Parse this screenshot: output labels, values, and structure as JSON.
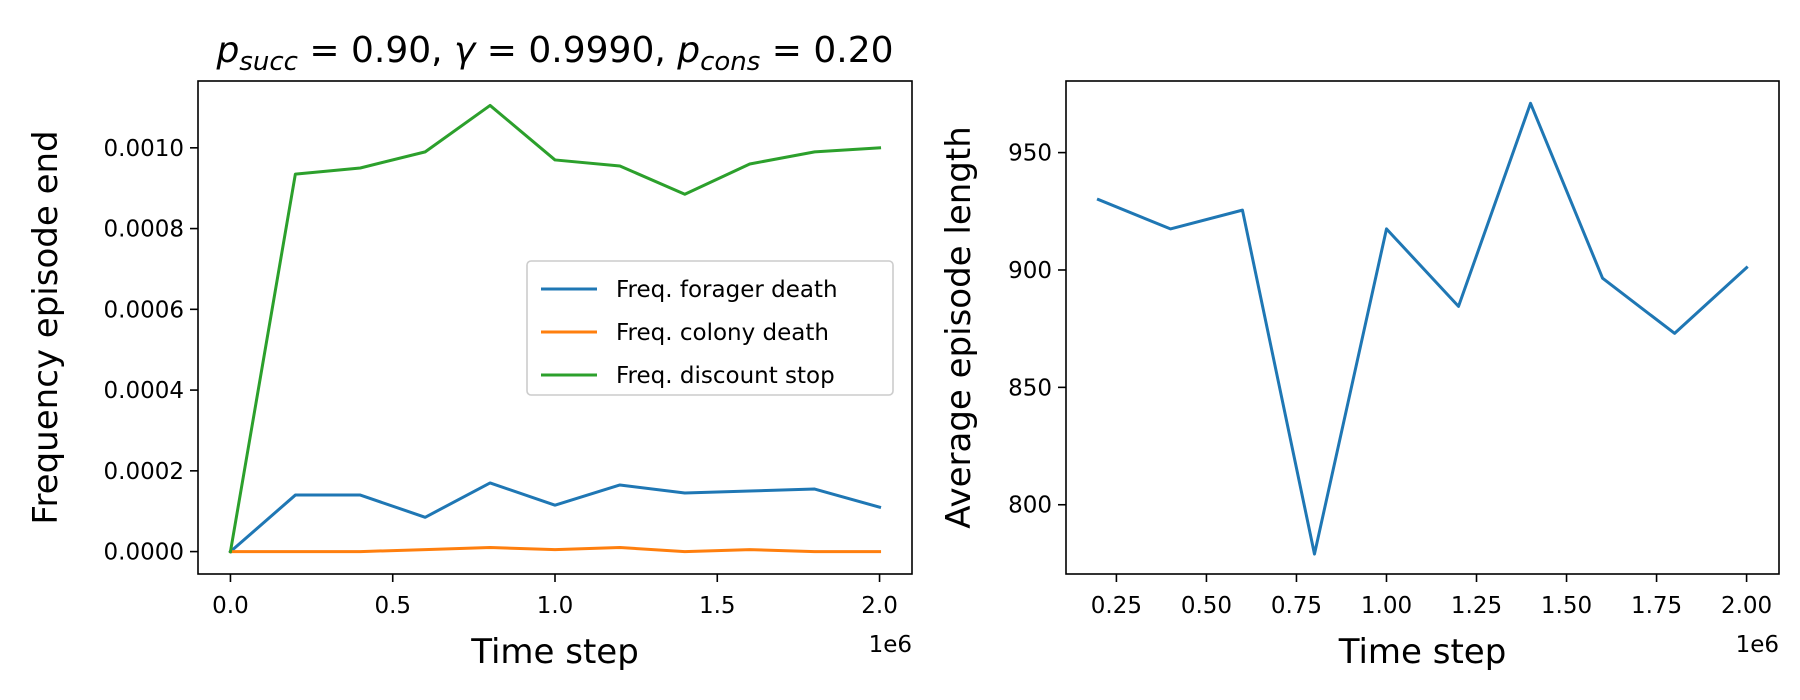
{
  "chart_data": [
    {
      "type": "line",
      "title": {
        "parts": [
          {
            "text": "p",
            "style": "italic"
          },
          {
            "text": "succ",
            "style": "italic-sub"
          },
          {
            "text": " = 0.90, ",
            "style": "normal"
          },
          {
            "text": "γ",
            "style": "italic"
          },
          {
            "text": " = 0.9990, ",
            "style": "normal"
          },
          {
            "text": "p",
            "style": "italic"
          },
          {
            "text": "cons",
            "style": "italic-sub"
          },
          {
            "text": " = 0.20",
            "style": "normal"
          }
        ]
      },
      "xlabel": "Time step",
      "ylabel": "Frequency episode end",
      "x_offset_label": "1e6",
      "xlim": [
        -0.1,
        2.1
      ],
      "ylim": [
        -5.55e-05,
        0.0011655
      ],
      "xticks": [
        0.0,
        0.5,
        1.0,
        1.5,
        2.0
      ],
      "xtick_labels": [
        "0.0",
        "0.5",
        "1.0",
        "1.5",
        "2.0"
      ],
      "yticks": [
        0.0,
        0.0002,
        0.0004,
        0.0006,
        0.0008,
        0.001
      ],
      "ytick_labels": [
        "0.0000",
        "0.0002",
        "0.0004",
        "0.0006",
        "0.0008",
        "0.0010"
      ],
      "grid": false,
      "legend_position": "center-right",
      "x": [
        0.0,
        0.2,
        0.4,
        0.6,
        0.8,
        1.0,
        1.2,
        1.4,
        1.6,
        1.8,
        2.0
      ],
      "series": [
        {
          "name": "Freq. forager death",
          "color": "#1f77b4",
          "values": [
            0.0,
            0.00014,
            0.00014,
            8.5e-05,
            0.00017,
            0.000115,
            0.000165,
            0.000145,
            0.00015,
            0.000155,
            0.00011
          ]
        },
        {
          "name": "Freq. colony death",
          "color": "#ff7f0e",
          "values": [
            0.0,
            0.0,
            0.0,
            5e-06,
            1e-05,
            5e-06,
            1e-05,
            0.0,
            5e-06,
            0.0,
            0.0
          ]
        },
        {
          "name": "Freq. discount stop",
          "color": "#2ca02c",
          "values": [
            0.0,
            0.000935,
            0.00095,
            0.00099,
            0.001105,
            0.00097,
            0.000955,
            0.000885,
            0.00096,
            0.00099,
            0.001
          ]
        }
      ]
    },
    {
      "type": "line",
      "xlabel": "Time step",
      "ylabel": "Average episode length",
      "x_offset_label": "1e6",
      "xlim": [
        0.11,
        2.09
      ],
      "ylim": [
        770.5,
        980.5
      ],
      "xticks": [
        0.25,
        0.5,
        0.75,
        1.0,
        1.25,
        1.5,
        1.75,
        2.0
      ],
      "xtick_labels": [
        "0.25",
        "0.50",
        "0.75",
        "1.00",
        "1.25",
        "1.50",
        "1.75",
        "2.00"
      ],
      "yticks": [
        800,
        850,
        900,
        950
      ],
      "ytick_labels": [
        "800",
        "850",
        "900",
        "950"
      ],
      "grid": false,
      "x": [
        0.2,
        0.4,
        0.6,
        0.8,
        1.0,
        1.2,
        1.4,
        1.6,
        1.8,
        2.0
      ],
      "series": [
        {
          "color": "#1f77b4",
          "values": [
            930,
            917.5,
            925.5,
            779,
            917.5,
            884.5,
            971,
            896.5,
            873,
            901
          ]
        }
      ]
    }
  ]
}
